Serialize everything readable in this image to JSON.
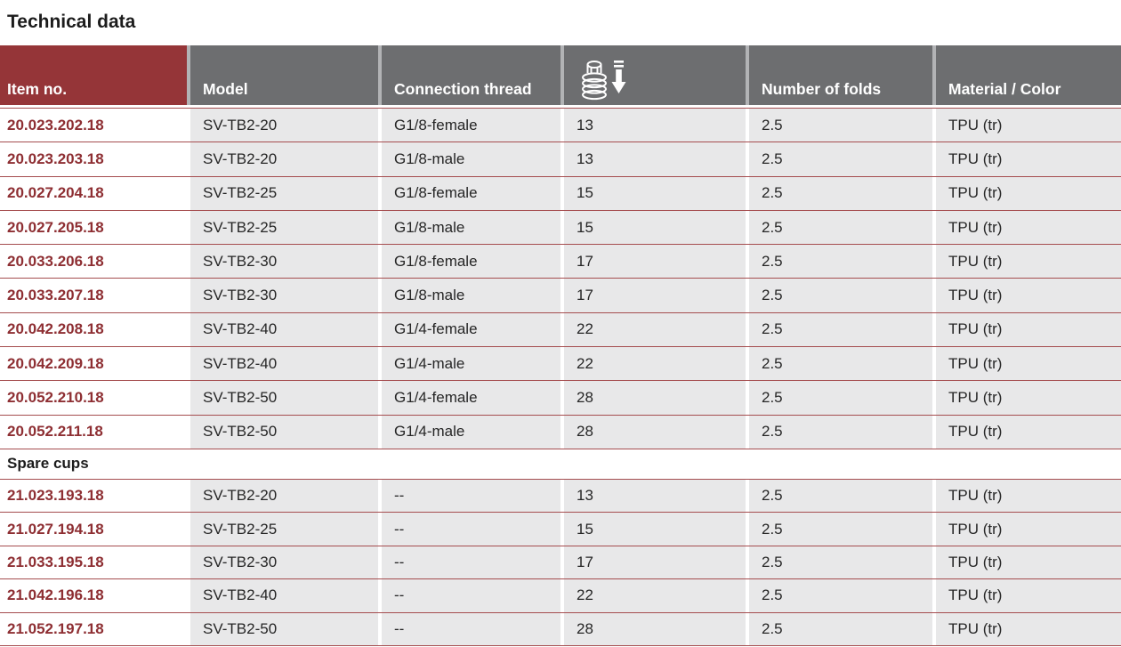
{
  "page_title": "Technical data",
  "colors": {
    "header_red": "#953538",
    "header_gray": "#6d6e70",
    "header_gap_gray": "#b2b3b5",
    "row_gray": "#e8e8e9",
    "separator_red": "#a54d4f",
    "item_number_red": "#8e2f33",
    "text_dark": "#262626"
  },
  "table": {
    "columns": [
      {
        "label": "Item no."
      },
      {
        "label": "Model"
      },
      {
        "label": "Connection thread"
      },
      {
        "label": "",
        "icon": "suction-cup-height-icon"
      },
      {
        "label": "Number of folds"
      },
      {
        "label": "Material / Color"
      }
    ],
    "main_rows": [
      [
        "20.023.202.18",
        "SV-TB2-20",
        "G1/8-female",
        "13",
        "2.5",
        "TPU (tr)"
      ],
      [
        "20.023.203.18",
        "SV-TB2-20",
        "G1/8-male",
        "13",
        "2.5",
        "TPU (tr)"
      ],
      [
        "20.027.204.18",
        "SV-TB2-25",
        "G1/8-female",
        "15",
        "2.5",
        "TPU (tr)"
      ],
      [
        "20.027.205.18",
        "SV-TB2-25",
        "G1/8-male",
        "15",
        "2.5",
        "TPU (tr)"
      ],
      [
        "20.033.206.18",
        "SV-TB2-30",
        "G1/8-female",
        "17",
        "2.5",
        "TPU (tr)"
      ],
      [
        "20.033.207.18",
        "SV-TB2-30",
        "G1/8-male",
        "17",
        "2.5",
        "TPU (tr)"
      ],
      [
        "20.042.208.18",
        "SV-TB2-40",
        "G1/4-female",
        "22",
        "2.5",
        "TPU (tr)"
      ],
      [
        "20.042.209.18",
        "SV-TB2-40",
        "G1/4-male",
        "22",
        "2.5",
        "TPU (tr)"
      ],
      [
        "20.052.210.18",
        "SV-TB2-50",
        "G1/4-female",
        "28",
        "2.5",
        "TPU (tr)"
      ],
      [
        "20.052.211.18",
        "SV-TB2-50",
        "G1/4-male",
        "28",
        "2.5",
        "TPU (tr)"
      ]
    ],
    "section_label": "Spare cups",
    "spare_rows": [
      [
        "21.023.193.18",
        "SV-TB2-20",
        "--",
        "13",
        "2.5",
        "TPU (tr)"
      ],
      [
        "21.027.194.18",
        "SV-TB2-25",
        "--",
        "15",
        "2.5",
        "TPU (tr)"
      ],
      [
        "21.033.195.18",
        "SV-TB2-30",
        "--",
        "17",
        "2.5",
        "TPU (tr)"
      ],
      [
        "21.042.196.18",
        "SV-TB2-40",
        "--",
        "22",
        "2.5",
        "TPU (tr)"
      ],
      [
        "21.052.197.18",
        "SV-TB2-50",
        "--",
        "28",
        "2.5",
        "TPU (tr)"
      ]
    ]
  }
}
